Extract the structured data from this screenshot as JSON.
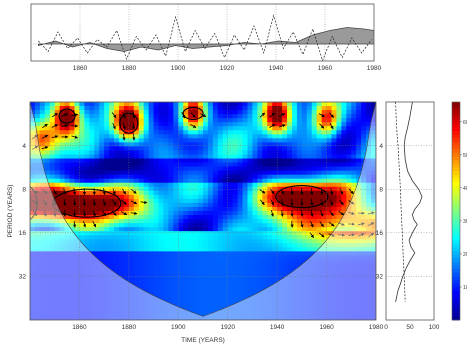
{
  "chart_data": [
    {
      "type": "line",
      "xlim": [
        1840,
        1980
      ],
      "x_ticks": [
        "1860",
        "1880",
        "1900",
        "1920",
        "1940",
        "1960",
        "1980"
      ],
      "series": [
        {
          "style": "dashed",
          "x": [
            1843,
            1847,
            1851,
            1855,
            1859,
            1863,
            1867,
            1871,
            1875,
            1879,
            1883,
            1887,
            1891,
            1895,
            1899,
            1903,
            1907,
            1911,
            1915,
            1919,
            1923,
            1927,
            1931,
            1935,
            1939,
            1943,
            1947,
            1951,
            1955,
            1959,
            1963,
            1967,
            1971,
            1975,
            1979
          ],
          "values": [
            0.2,
            -0.5,
            0.8,
            -0.3,
            0.4,
            -0.6,
            0.3,
            -0.2,
            0.9,
            -1.0,
            0.5,
            -0.4,
            0.6,
            -0.8,
            1.8,
            -0.5,
            0.9,
            -0.3,
            0.7,
            -0.9,
            0.6,
            -0.4,
            1.2,
            -0.6,
            1.9,
            -0.3,
            0.8,
            -0.7,
            1.0,
            -1.1,
            0.5,
            -0.9,
            0.4,
            -0.6,
            0.3
          ]
        },
        {
          "style": "filled",
          "x": [
            1843,
            1850,
            1857,
            1864,
            1871,
            1878,
            1885,
            1892,
            1899,
            1906,
            1913,
            1920,
            1927,
            1934,
            1941,
            1948,
            1955,
            1962,
            1969,
            1976,
            1980
          ],
          "values": [
            -0.1,
            0.2,
            -0.2,
            0.1,
            -0.3,
            -0.5,
            -0.2,
            -0.4,
            -0.1,
            -0.3,
            -0.2,
            -0.1,
            0.1,
            0.0,
            0.2,
            0.1,
            0.6,
            0.9,
            1.1,
            1.0,
            0.9
          ]
        }
      ]
    },
    {
      "type": "heatmap",
      "xlabel": "TIME (YEARS)",
      "ylabel": "PERIOD (YEARS)",
      "xlim": [
        1840,
        1980
      ],
      "ylim": [
        2,
        64
      ],
      "y_scale": "log2",
      "x_ticks": [
        "1860",
        "1880",
        "1900",
        "1920",
        "1940",
        "1960",
        "1980"
      ],
      "y_ticks": [
        "4",
        "8",
        "16",
        "32"
      ],
      "colormap": [
        "#00008f",
        "#0000ff",
        "#0080ff",
        "#00ffff",
        "#80ff80",
        "#ffff00",
        "#ff8000",
        "#ff0000",
        "#800000"
      ],
      "high_power_regions": [
        {
          "t": 1863,
          "period": 10,
          "level": 0.9
        },
        {
          "t": 1838,
          "period": 10,
          "level": 0.7
        },
        {
          "t": 1950,
          "period": 9,
          "level": 0.9
        },
        {
          "t": 1855,
          "period": 2.5,
          "level": 0.85
        },
        {
          "t": 1880,
          "period": 2.8,
          "level": 0.95
        },
        {
          "t": 1906,
          "period": 2.4,
          "level": 0.8
        },
        {
          "t": 1940,
          "period": 2.5,
          "level": 0.75
        },
        {
          "t": 1960,
          "period": 2.6,
          "level": 0.7
        },
        {
          "t": 1845,
          "period": 3.6,
          "level": 0.6
        },
        {
          "t": 1975,
          "period": 14,
          "level": 0.55
        }
      ]
    },
    {
      "type": "line",
      "x_ticks": [
        "0",
        "50",
        "100"
      ],
      "xlim": [
        0,
        100
      ],
      "y_ticks": [
        "4",
        "8",
        "16",
        "32"
      ],
      "series": [
        {
          "style": "solid",
          "period": [
            2,
            2.5,
            3,
            3.5,
            4,
            5,
            6,
            7,
            8,
            9,
            10,
            11,
            12,
            13,
            14,
            16,
            18,
            20,
            22,
            25,
            28,
            32,
            36,
            40,
            48
          ],
          "values": [
            55,
            50,
            45,
            40,
            38,
            40,
            45,
            55,
            68,
            75,
            70,
            60,
            55,
            58,
            65,
            55,
            48,
            52,
            60,
            50,
            42,
            35,
            30,
            25,
            20
          ]
        },
        {
          "style": "dashed",
          "period": [
            2,
            3,
            4,
            6,
            8,
            12,
            16,
            24,
            32,
            48
          ],
          "values": [
            20,
            22,
            25,
            28,
            30,
            32,
            34,
            36,
            38,
            40
          ]
        }
      ]
    },
    {
      "type": "colorbar",
      "ticks": [
        "10",
        "20",
        "30",
        "40",
        "50",
        "60"
      ]
    }
  ]
}
